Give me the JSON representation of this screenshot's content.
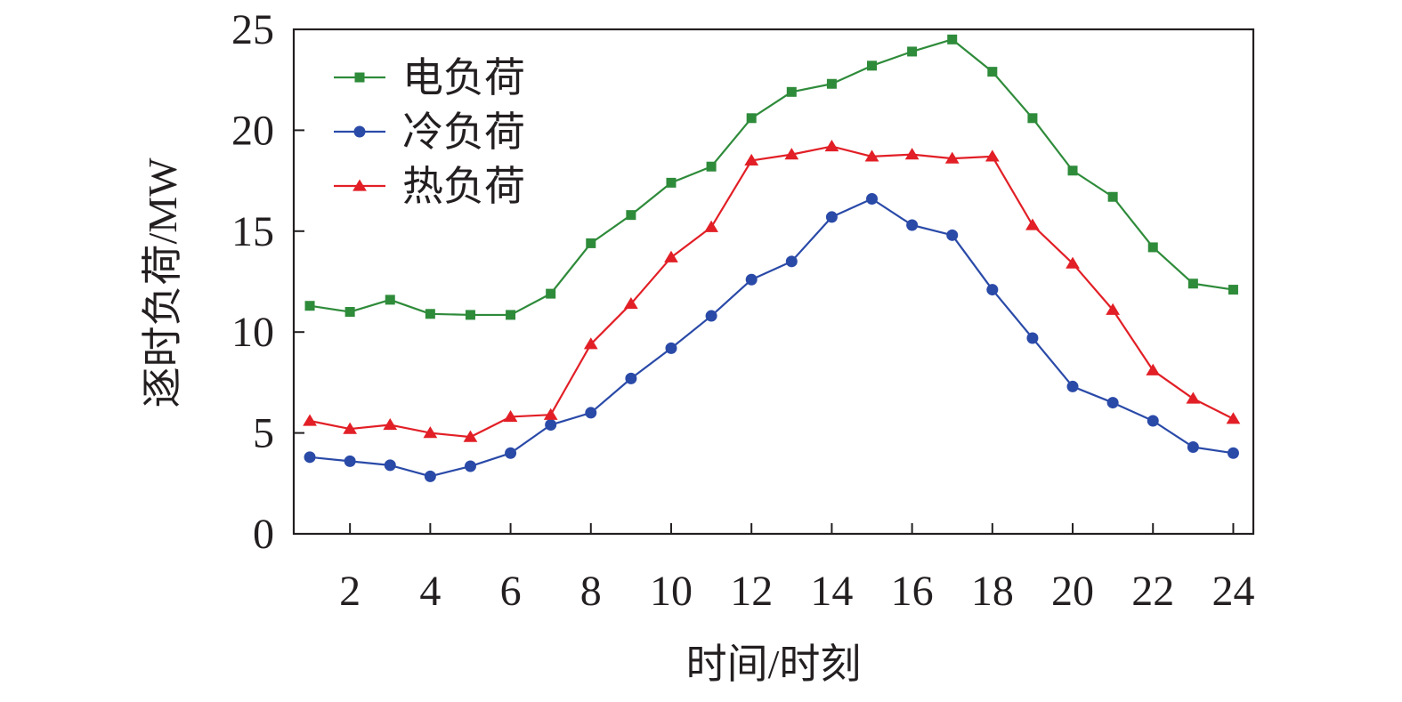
{
  "chart_data": {
    "type": "line",
    "x": [
      1,
      2,
      3,
      4,
      5,
      6,
      7,
      8,
      9,
      10,
      11,
      12,
      13,
      14,
      15,
      16,
      17,
      18,
      19,
      20,
      21,
      22,
      23,
      24
    ],
    "x_ticks": [
      2,
      4,
      6,
      8,
      10,
      12,
      14,
      16,
      18,
      20,
      22,
      24
    ],
    "y_ticks": [
      0,
      5,
      10,
      15,
      20,
      25
    ],
    "xlim": [
      0.6,
      24.5
    ],
    "ylim": [
      0,
      25
    ],
    "xlabel": "时间/时刻",
    "ylabel": "逐时负荷/MW",
    "legend_position": "top-left",
    "grid": false,
    "series": [
      {
        "name": "电负荷",
        "color": "#2e8b3a",
        "marker": "square",
        "values": [
          11.3,
          11.0,
          11.6,
          10.9,
          10.85,
          10.85,
          11.9,
          14.4,
          15.8,
          17.4,
          18.2,
          20.6,
          21.9,
          22.3,
          23.2,
          23.9,
          24.5,
          22.9,
          20.6,
          18.0,
          16.7,
          14.2,
          12.4,
          12.1
        ]
      },
      {
        "name": "冷负荷",
        "color": "#2a4aa8",
        "marker": "circle",
        "values": [
          3.8,
          3.6,
          3.4,
          2.85,
          3.35,
          4.0,
          5.4,
          6.0,
          7.7,
          9.2,
          10.8,
          12.6,
          13.5,
          15.7,
          16.6,
          15.3,
          14.8,
          12.1,
          9.7,
          7.3,
          6.5,
          5.6,
          4.3,
          4.0
        ]
      },
      {
        "name": "热负荷",
        "color": "#e21f26",
        "marker": "triangle",
        "values": [
          5.6,
          5.2,
          5.4,
          5.0,
          4.8,
          5.8,
          5.9,
          9.4,
          11.4,
          13.7,
          15.2,
          18.5,
          18.8,
          19.2,
          18.7,
          18.8,
          18.6,
          18.7,
          15.3,
          13.4,
          11.1,
          8.1,
          6.7,
          5.7
        ]
      }
    ]
  }
}
